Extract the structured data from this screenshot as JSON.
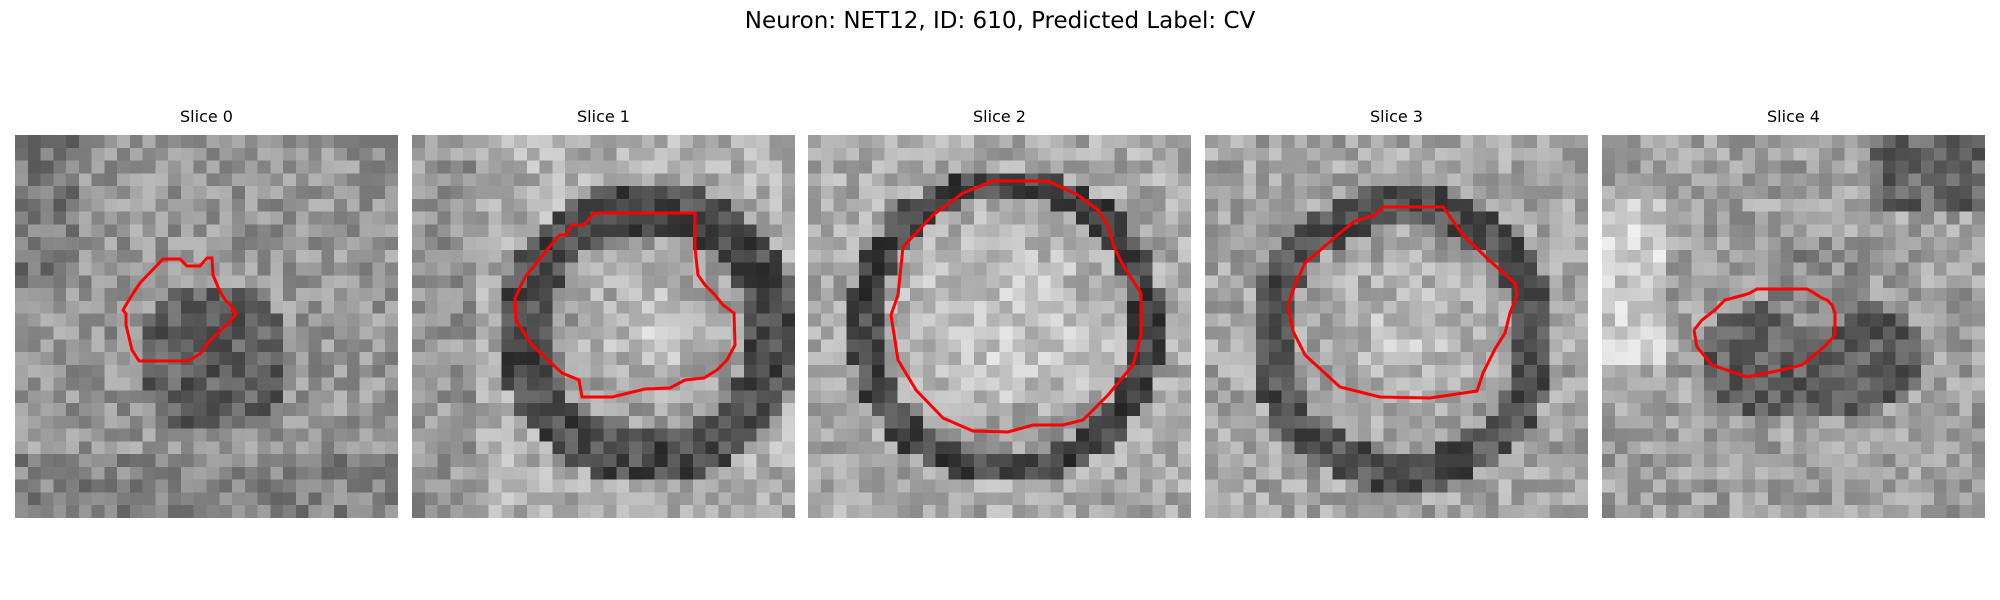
{
  "figure": {
    "title": "Neuron: NET12, ID: 610, Predicted Label: CV",
    "contour_color": "#ff0000"
  },
  "slices": [
    {
      "title": "Slice 0"
    },
    {
      "title": "Slice 1"
    },
    {
      "title": "Slice 2"
    },
    {
      "title": "Slice 3"
    },
    {
      "title": "Slice 4"
    }
  ]
}
